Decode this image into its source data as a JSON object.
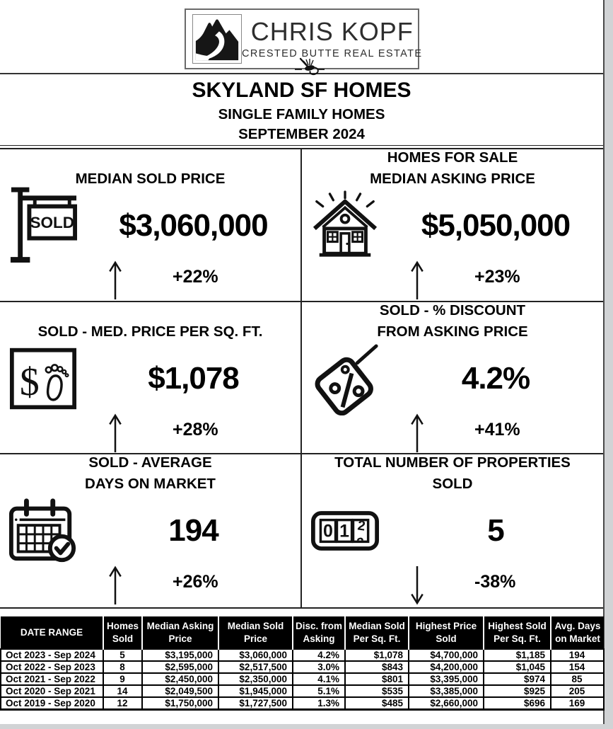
{
  "logo": {
    "brand": "CHRIS KOPF",
    "tagline": "CRESTED BUTTE REAL ESTATE",
    "emblem": "mountain-road-logo-icon",
    "ornament": "fishing-fly-icon"
  },
  "header": {
    "title": "SKYLAND SF HOMES",
    "subtitle": "SINGLE FAMILY HOMES",
    "period": "SEPTEMBER 2024"
  },
  "stats": {
    "panels": [
      {
        "title_line1": "",
        "title_line2": "MEDIAN SOLD PRICE",
        "value": "$3,060,000",
        "change": "+22%",
        "direction": "up",
        "icon": "sold-sign-icon"
      },
      {
        "title_line1": "HOMES FOR SALE",
        "title_line2": "MEDIAN ASKING PRICE",
        "value": "$5,050,000",
        "change": "+23%",
        "direction": "up",
        "icon": "house-icon"
      },
      {
        "title_line1": "",
        "title_line2": "SOLD - MED. PRICE PER SQ. FT.",
        "value": "$1,078",
        "change": "+28%",
        "direction": "up",
        "icon": "dollar-per-sqft-icon"
      },
      {
        "title_line1": "SOLD - % DISCOUNT",
        "title_line2": "FROM ASKING PRICE",
        "value": "4.2%",
        "change": "+41%",
        "direction": "up",
        "icon": "discount-tag-icon"
      },
      {
        "title_line1": "SOLD - AVERAGE",
        "title_line2": "DAYS ON MARKET",
        "value": "194",
        "change": "+26%",
        "direction": "up",
        "icon": "calendar-check-icon"
      },
      {
        "title_line1": "TOTAL NUMBER OF PROPERTIES",
        "title_line2": "SOLD",
        "value": "5",
        "change": "-38%",
        "direction": "down",
        "icon": "tally-counter-icon"
      }
    ]
  },
  "table": {
    "columns": [
      "DATE RANGE",
      "Homes Sold",
      "Median Asking Price",
      "Median Sold Price",
      "Disc. from Asking",
      "Median Sold Per Sq. Ft.",
      "Highest Price Sold",
      "Highest Sold Per Sq. Ft.",
      "Avg. Days on Market"
    ],
    "rows": [
      [
        "Oct 2023 - Sep 2024",
        "5",
        "$3,195,000",
        "$3,060,000",
        "4.2%",
        "$1,078",
        "$4,700,000",
        "$1,185",
        "194"
      ],
      [
        "Oct 2022 - Sep 2023",
        "8",
        "$2,595,000",
        "$2,517,500",
        "3.0%",
        "$843",
        "$4,200,000",
        "$1,045",
        "154"
      ],
      [
        "Oct 2021 - Sep 2022",
        "9",
        "$2,450,000",
        "$2,350,000",
        "4.1%",
        "$801",
        "$3,395,000",
        "$974",
        "85"
      ],
      [
        "Oct 2020 - Sep 2021",
        "14",
        "$2,049,500",
        "$1,945,000",
        "5.1%",
        "$535",
        "$3,385,000",
        "$925",
        "205"
      ],
      [
        "Oct 2019 - Sep 2020",
        "12",
        "$1,750,000",
        "$1,727,500",
        "1.3%",
        "$485",
        "$2,660,000",
        "$696",
        "169"
      ]
    ]
  },
  "colors": {
    "accent": "#000000",
    "table_header_bg": "#000000",
    "table_header_text": "#ffffff",
    "page_background": "#d1d3d5",
    "paper": "#ffffff"
  }
}
